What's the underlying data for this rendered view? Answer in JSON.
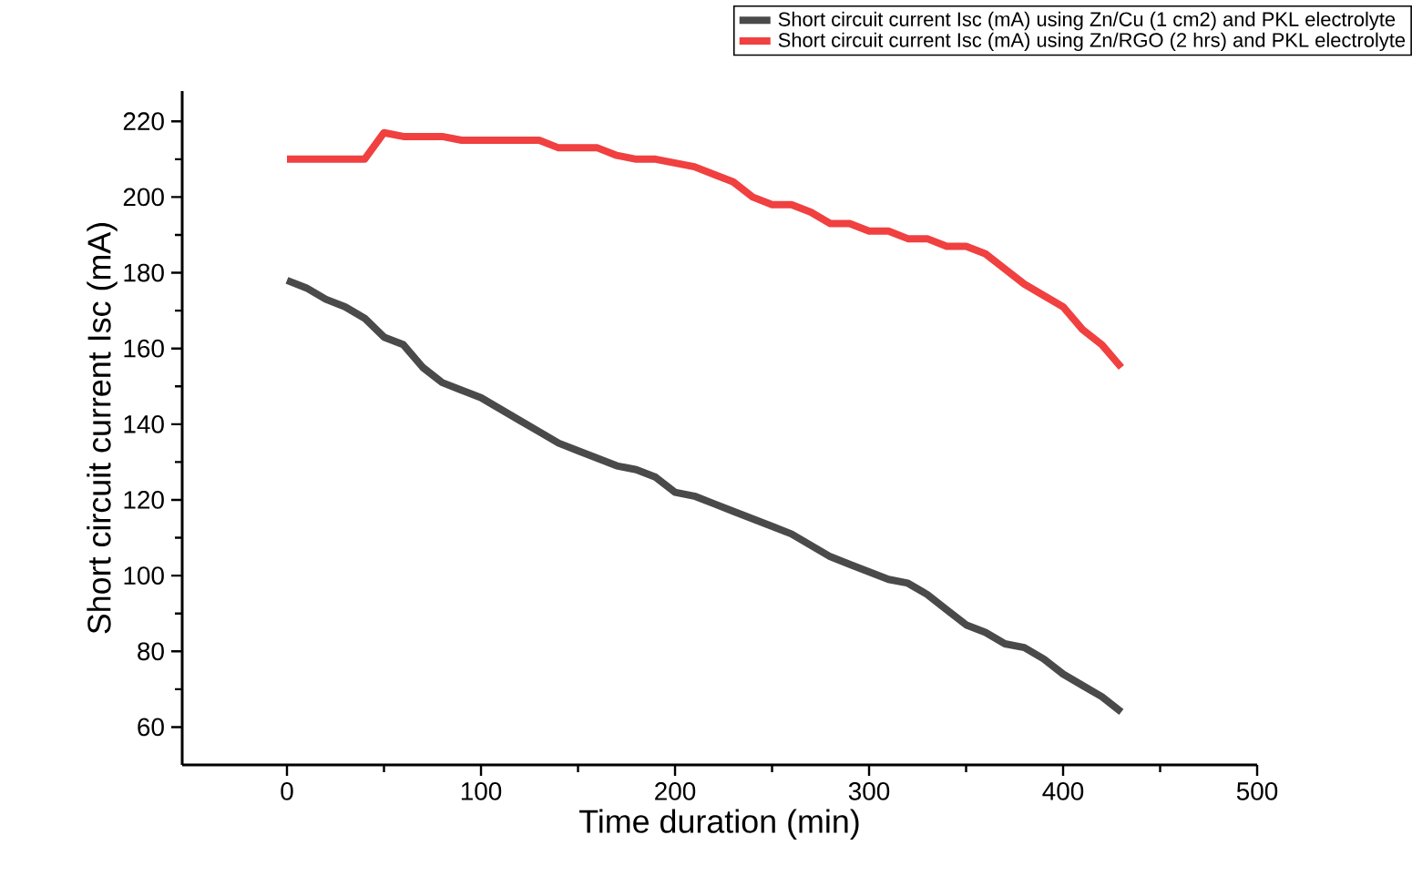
{
  "chart_data": {
    "type": "line",
    "xlabel": "Time duration (min)",
    "ylabel": "Short circuit current Isc (mA)",
    "x": [
      0,
      10,
      20,
      30,
      40,
      50,
      60,
      70,
      80,
      90,
      100,
      110,
      120,
      130,
      140,
      150,
      160,
      170,
      180,
      190,
      200,
      210,
      220,
      230,
      240,
      250,
      260,
      270,
      280,
      290,
      300,
      310,
      320,
      330,
      340,
      350,
      360,
      370,
      380,
      390,
      400,
      410,
      420,
      430
    ],
    "series": [
      {
        "name": "Short circuit current Isc (mA) using Zn/Cu (1 cm2) and PKL electrolyte",
        "color": "#4a4a4a",
        "values": [
          178,
          176,
          173,
          171,
          168,
          163,
          161,
          155,
          151,
          149,
          147,
          144,
          141,
          138,
          135,
          133,
          131,
          129,
          128,
          126,
          122,
          121,
          119,
          117,
          115,
          113,
          111,
          108,
          105,
          103,
          101,
          99,
          98,
          95,
          91,
          87,
          85,
          82,
          81,
          78,
          74,
          71,
          68,
          64
        ]
      },
      {
        "name": "Short circuit current Isc (mA) using Zn/RGO (2 hrs) and PKL electrolyte",
        "color": "#f04040",
        "values": [
          210,
          210,
          210,
          210,
          210,
          217,
          216,
          216,
          216,
          215,
          215,
          215,
          215,
          215,
          213,
          213,
          213,
          211,
          210,
          210,
          209,
          208,
          206,
          204,
          200,
          198,
          198,
          196,
          193,
          193,
          191,
          191,
          189,
          189,
          187,
          187,
          185,
          181,
          177,
          174,
          171,
          165,
          161,
          155
        ]
      }
    ],
    "xlim": [
      -54,
      500
    ],
    "ylim": [
      50,
      228
    ],
    "xticks": [
      0,
      100,
      200,
      300,
      400,
      500
    ],
    "yticks": [
      60,
      80,
      100,
      120,
      140,
      160,
      180,
      200,
      220
    ],
    "grid": false,
    "legend": "top right",
    "marker": "none",
    "line_style": "solid"
  }
}
